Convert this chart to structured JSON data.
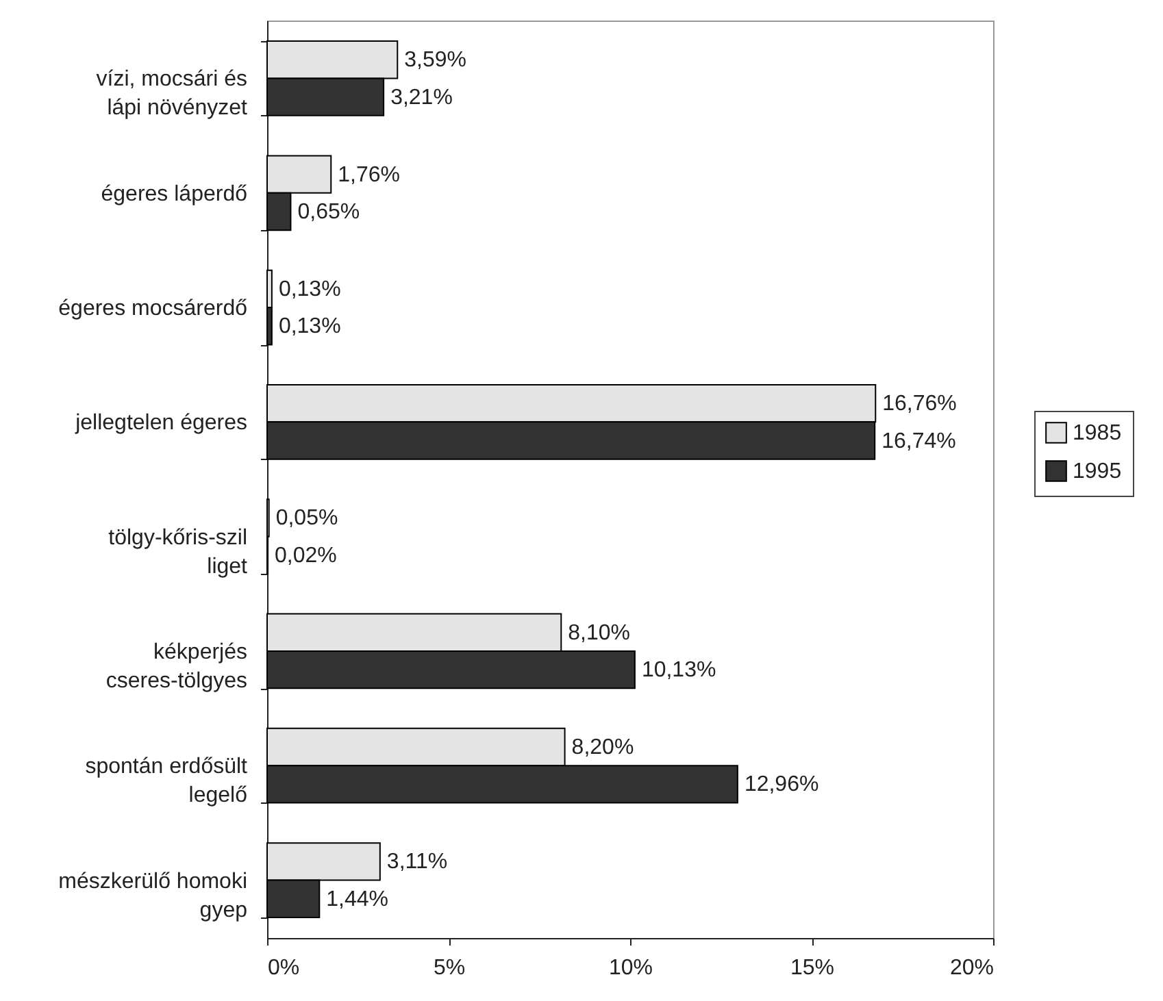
{
  "chart_data": {
    "type": "bar",
    "orientation": "horizontal",
    "categories": [
      "vízi, mocsári és lápi növényzet",
      "égeres láperdő",
      "égeres mocsárerdő",
      "jellegtelen égeres",
      "tölgy-kőris-szil liget",
      "kékperjés cseres-tölgyes",
      "spontán erdősült legelő",
      "mészkerülő homoki gyep"
    ],
    "series": [
      {
        "name": "1985",
        "color": "#e4e4e4",
        "values": [
          3.59,
          1.76,
          0.13,
          16.76,
          0.05,
          8.1,
          8.2,
          3.11
        ],
        "value_labels": [
          "3,59%",
          "1,76%",
          "0,13%",
          "16,76%",
          "0,05%",
          "8,10%",
          "8,20%",
          "3,11%"
        ]
      },
      {
        "name": "1995",
        "color": "#333333",
        "values": [
          3.21,
          0.65,
          0.13,
          16.74,
          0.02,
          10.13,
          12.96,
          1.44
        ],
        "value_labels": [
          "3,21%",
          "0,65%",
          "0,13%",
          "16,74%",
          "0,02%",
          "10,13%",
          "12,96%",
          "1,44%"
        ]
      }
    ],
    "xlim": [
      0,
      20
    ],
    "xticks": [
      {
        "value": 0,
        "label": "0%"
      },
      {
        "value": 5,
        "label": "5%"
      },
      {
        "value": 10,
        "label": "10%"
      },
      {
        "value": 15,
        "label": "15%"
      },
      {
        "value": 20,
        "label": "20%"
      }
    ],
    "grid": false,
    "legend": "right"
  }
}
